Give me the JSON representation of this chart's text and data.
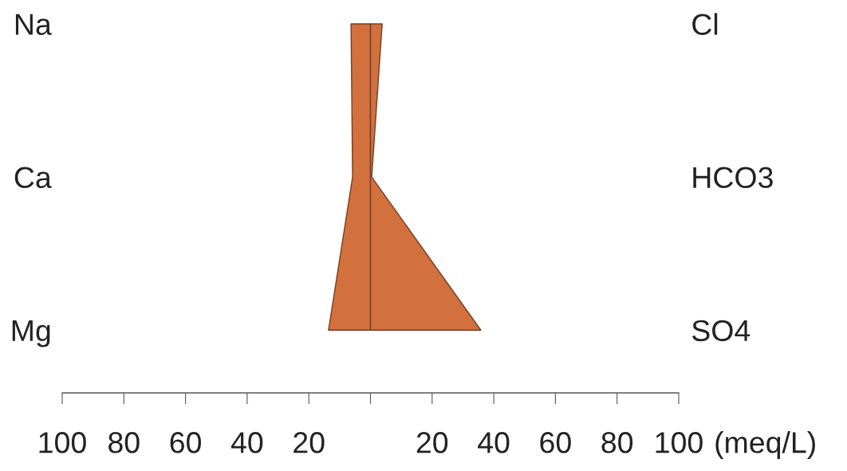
{
  "chart_data": {
    "type": "area",
    "orientation": "horizontal",
    "categories": [
      "Na",
      "Ca",
      "Mg"
    ],
    "y2_categories": [
      "Cl",
      "HCO3",
      "SO4"
    ],
    "xlabel": "(meq/L)",
    "xlim": [
      -100,
      100
    ],
    "xticks": [
      {
        "value": -100,
        "label": "100"
      },
      {
        "value": -80,
        "label": "80"
      },
      {
        "value": -60,
        "label": "60"
      },
      {
        "value": -40,
        "label": "40"
      },
      {
        "value": -20,
        "label": "20"
      },
      {
        "value": 0,
        "label": null
      },
      20,
      40,
      60,
      80,
      100
    ],
    "series": [
      {
        "color": "#d2703e",
        "values": [
          -6.3,
          -5.8,
          -13.6
        ]
      },
      {
        "color": "#d2703e",
        "values": [
          3.8,
          0.4,
          35.8
        ]
      }
    ]
  }
}
